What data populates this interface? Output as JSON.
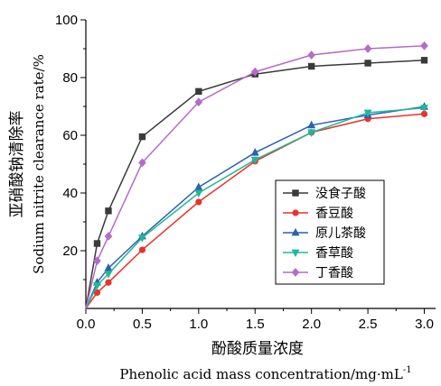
{
  "chart_data": {
    "type": "line",
    "xlabel_cn": "酚酸质量浓度",
    "xlabel_en": "Phenolic acid mass concentration/mg·mL",
    "xlabel_en_sup": "-1",
    "ylabel_cn": "亚硝酸钠清除率",
    "ylabel_en": "Sodium nitrite clearance rate/%",
    "xlim": [
      0,
      3.1
    ],
    "ylim": [
      0,
      100
    ],
    "x_ticks": [
      "0.0",
      "0.5",
      "1.0",
      "1.5",
      "2.0",
      "2.5",
      "3.0"
    ],
    "y_ticks": [
      "20",
      "40",
      "60",
      "80",
      "100"
    ],
    "legend_position": "lower-right",
    "grid": false,
    "series": [
      {
        "name": "没食子酸",
        "color": "#3a3a3a",
        "marker": "square",
        "x": [
          0,
          0.1,
          0.2,
          0.5,
          1.0,
          1.5,
          2.0,
          2.5,
          3.0
        ],
        "y": [
          0,
          22.5,
          33.8,
          59.5,
          75.2,
          81.2,
          83.9,
          85.0,
          86.0
        ]
      },
      {
        "name": "香豆酸",
        "color": "#e8332a",
        "marker": "circle",
        "x": [
          0,
          0.1,
          0.2,
          0.5,
          1.0,
          1.5,
          2.0,
          2.5,
          3.0
        ],
        "y": [
          0,
          5.5,
          9.0,
          20.3,
          36.9,
          51.0,
          61.0,
          65.7,
          67.4
        ]
      },
      {
        "name": "原儿茶酸",
        "color": "#2f5fb0",
        "marker": "triangle-up",
        "x": [
          0,
          0.1,
          0.2,
          0.5,
          1.0,
          1.5,
          2.0,
          2.5,
          3.0
        ],
        "y": [
          0,
          9.0,
          14.0,
          25.0,
          42.0,
          54.0,
          63.5,
          67.0,
          69.9
        ]
      },
      {
        "name": "香草酸",
        "color": "#1fb89a",
        "marker": "triangle-down",
        "x": [
          0,
          0.1,
          0.2,
          0.5,
          1.0,
          1.5,
          2.0,
          2.5,
          3.0
        ],
        "y": [
          0,
          8.0,
          12.0,
          24.5,
          40.0,
          51.5,
          61.0,
          67.8,
          69.5
        ]
      },
      {
        "name": "丁香酸",
        "color": "#b46cc8",
        "marker": "diamond",
        "x": [
          0,
          0.1,
          0.2,
          0.5,
          1.0,
          1.5,
          2.0,
          2.5,
          3.0
        ],
        "y": [
          0,
          16.5,
          25.0,
          50.5,
          71.5,
          82.0,
          87.8,
          90.0,
          91.0
        ]
      }
    ]
  }
}
